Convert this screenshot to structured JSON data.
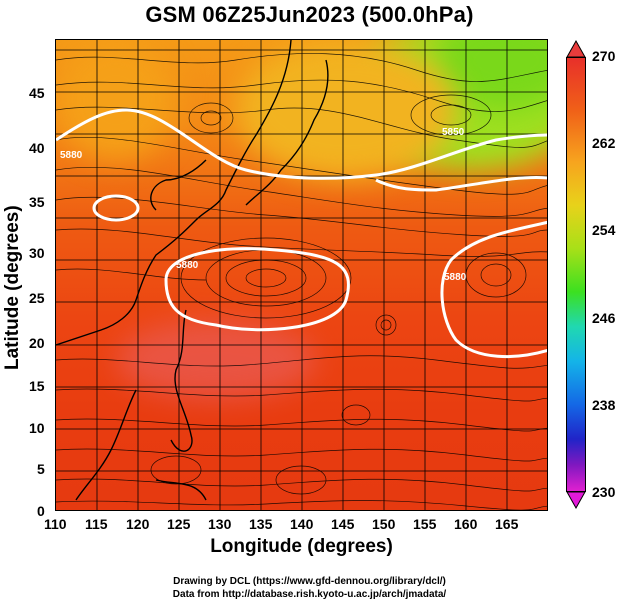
{
  "title": "GSM 06Z25Jun2023 (500.0hPa)",
  "axes": {
    "xlabel": "Longitude (degrees)",
    "ylabel": "Latitude  (degrees)",
    "xticks": [
      "110",
      "115",
      "120",
      "125",
      "130",
      "135",
      "140",
      "145",
      "150",
      "155",
      "160",
      "165"
    ],
    "yticks": [
      "45",
      "40",
      "35",
      "30",
      "25",
      "20",
      "15",
      "10",
      "5",
      "0"
    ]
  },
  "colorbar": {
    "labels": [
      "270",
      "262",
      "254",
      "246",
      "238",
      "230"
    ],
    "min": 230,
    "max": 270
  },
  "contour_labels": [
    "5880",
    "5880",
    "5880",
    "5850"
  ],
  "credits": {
    "line1": "Drawing by DCL (https://www.gfd-dennou.org/library/dcl/)",
    "line2": "Data from http://database.rish.kyoto-u.ac.jp/arch/jmadata/"
  },
  "map_data": {
    "field": "temperature",
    "level_hPa": 500,
    "lon_range": [
      110,
      170
    ],
    "lat_range": [
      0,
      50
    ],
    "overlays": [
      "streamlines",
      "coastlines",
      "lat-lon grid",
      "geopotential contours (white)"
    ]
  }
}
